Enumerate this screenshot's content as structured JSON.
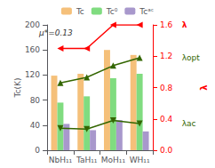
{
  "chart_data": {
    "type": "bar",
    "categories": [
      "NbH₁₁",
      "TaH₁₁",
      "MoH₁₁",
      "WH₁₁"
    ],
    "ylabel": "Tc(K)",
    "y2label": "λ",
    "ylim": [
      0,
      200
    ],
    "yticks": [
      0,
      40,
      80,
      120,
      160,
      200
    ],
    "y2lim": [
      0.0,
      1.6
    ],
    "y2ticks": [
      {
        "value": 0.0,
        "label": "0.0"
      },
      0.4,
      0.8,
      1.2,
      1.6
    ],
    "grid": false,
    "legend": "top",
    "annotations": [
      "μ*=0.13"
    ],
    "series": [
      {
        "name": "Tc",
        "type": "bar",
        "color": "#F5C07A",
        "values": [
          119,
          122,
          160,
          152
        ]
      },
      {
        "name": "Tc⁰",
        "type": "bar",
        "color": "#80DC80",
        "values": [
          76,
          86,
          115,
          122
        ]
      },
      {
        "name": "Tcᵃᶜ",
        "type": "bar",
        "color": "#A898CC",
        "values": [
          42,
          32,
          48,
          30
        ]
      },
      {
        "name": "λ",
        "type": "line",
        "axis": "y2",
        "color": "#FF0000",
        "marker": "triangle-left",
        "values": [
          1.3,
          1.3,
          1.6,
          1.6
        ]
      },
      {
        "name": "λopt",
        "type": "line",
        "axis": "y2",
        "color": "#336600",
        "marker": "triangle-up",
        "values": [
          0.86,
          0.93,
          1.08,
          1.18
        ]
      },
      {
        "name": "λac",
        "type": "line",
        "axis": "y2",
        "color": "#336600",
        "marker": "triangle-down",
        "values": [
          0.28,
          0.27,
          0.38,
          0.34
        ]
      }
    ]
  }
}
